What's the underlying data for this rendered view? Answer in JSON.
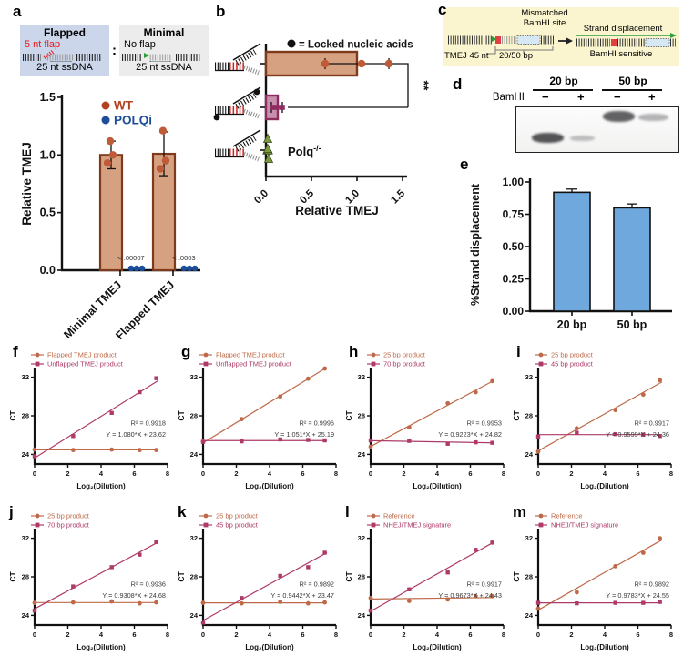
{
  "panels": {
    "a": {
      "letter": "a",
      "flapped": {
        "title": "Flapped",
        "flap": "5 nt flap",
        "ssdna": "25 nt ssDNA"
      },
      "minimal": {
        "title": "Minimal",
        "flap": "No flap",
        "ssdna": "25 nt ssDNA"
      },
      "colon": ":"
    },
    "b": {
      "letter": "b"
    },
    "c": {
      "letter": "c",
      "mismatched_1": "Mismatched",
      "mismatched_2": "BamHI site",
      "strand": "Strand displacement",
      "sensitive": "BamHI sensitive",
      "tmej": "TMEJ 45 nt",
      "bp": "20/50 bp"
    },
    "d": {
      "letter": "d",
      "group1": "20 bp",
      "group2": "50 bp",
      "enzyme": "BamHI",
      "lane1": "−",
      "lane2": "+",
      "lane3": "−",
      "lane4": "+"
    },
    "e": {
      "letter": "e"
    },
    "f": {
      "letter": "f"
    },
    "g": {
      "letter": "g"
    },
    "h": {
      "letter": "h"
    },
    "i": {
      "letter": "i"
    },
    "j": {
      "letter": "j"
    },
    "k": {
      "letter": "k"
    },
    "l": {
      "letter": "l"
    },
    "m": {
      "letter": "m"
    }
  },
  "chart_data": [
    {
      "id": "a",
      "type": "bar",
      "ylabel": "Relative TMEJ",
      "yticks": [
        "0.0",
        "0.5",
        "1.0",
        "1.5"
      ],
      "ylim": [
        0,
        1.5
      ],
      "categories": [
        "Minimal TMEJ",
        "Flapped TMEJ"
      ],
      "legend": [
        {
          "name": "WT",
          "color": "#B3401F"
        },
        {
          "name": "POLQi",
          "color": "#1C4E9A"
        }
      ],
      "bar_fill": "#D6A181",
      "bar_border": "#7E3A1B",
      "point_color": "#BF5B38",
      "bars": [
        {
          "value": 1.0,
          "err": 0.12,
          "points": [
            0.93,
            1.0,
            1.12
          ]
        },
        {
          "value": 1.01,
          "err": 0.19,
          "points": [
            0.88,
            0.95,
            1.21
          ]
        }
      ],
      "polqi": {
        "color": "#1C4E9A",
        "values": [
          0,
          0
        ],
        "annotations": [
          "< .00007",
          "< .0003"
        ]
      }
    },
    {
      "id": "b",
      "type": "hbar",
      "xlabel": "Relative TMEJ",
      "xticks": [
        "0.0",
        "0.5",
        "1.0",
        "1.5"
      ],
      "xlim": [
        0,
        1.5
      ],
      "legend": "= Locked nucleic acids",
      "sig": "**",
      "rows": [
        {
          "substrate": "flapped-dna",
          "bar": 1.0,
          "fill": "#D6A181",
          "border": "#7E3A1B",
          "marker": "circle",
          "point_color": "#BF5B38",
          "points": [
            0.65,
            1.05,
            1.35
          ],
          "err": [
            0.65,
            1.35
          ]
        },
        {
          "substrate": "flapped-dna-lna",
          "bar": 0.13,
          "fill": "#C791AE",
          "border": "#8E2B5F",
          "marker": "square",
          "point_color": "#8E2B5F",
          "points": [
            0.07,
            0.12,
            0.18
          ],
          "err": [
            0.06,
            0.18
          ]
        },
        {
          "substrate": "flapped-dna",
          "bar": 0,
          "marker": "triangle",
          "point_color": "#7A9A3D",
          "points": [
            0.01,
            0.02,
            0.03
          ],
          "label": "Polq",
          "label_sup": "-/-"
        }
      ]
    },
    {
      "id": "e",
      "type": "bar",
      "ylabel": "%Strand displacement",
      "yticks": [
        "0.00",
        "0.25",
        "0.50",
        "0.75",
        "1.00"
      ],
      "ylim": [
        0,
        1
      ],
      "categories": [
        "20 bp",
        "50 bp"
      ],
      "bar_fill": "#6FA8DC",
      "bar_border": "#111",
      "bars": [
        {
          "value": 0.92,
          "err": 0.025
        },
        {
          "value": 0.8,
          "err": 0.03
        }
      ]
    },
    {
      "id": "f",
      "type": "line",
      "xlabel": "Log₂(Dilution)",
      "ylabel": "CT",
      "xticks": [
        0,
        2,
        4,
        6,
        8
      ],
      "yticks": [
        24,
        28,
        32
      ],
      "xlim": [
        0,
        8
      ],
      "ylim": [
        23,
        33
      ],
      "x": [
        0,
        2.32,
        4.64,
        6.32,
        7.32
      ],
      "r2": "R² = 0.9918",
      "eq": "Y = 1.080*X + 23.62",
      "series": [
        {
          "name": "Flapped TMEJ product",
          "marker": "circle",
          "color": "#BE6A4A",
          "y": [
            24.5,
            24.45,
            24.5,
            24.45,
            24.45
          ],
          "fit": {
            "slope": 0,
            "intercept": 24.47
          }
        },
        {
          "name": "Unflapped TMEJ product",
          "marker": "square",
          "color": "#AD3A68",
          "y": [
            23.8,
            25.9,
            28.3,
            30.45,
            31.9
          ],
          "fit": {
            "slope": 1.08,
            "intercept": 23.62
          }
        }
      ]
    },
    {
      "id": "g",
      "type": "line",
      "xlabel": "Log₂(Dilution)",
      "ylabel": "CT",
      "xticks": [
        0,
        2,
        4,
        6,
        8
      ],
      "yticks": [
        24,
        28,
        32
      ],
      "xlim": [
        0,
        8
      ],
      "ylim": [
        23,
        33
      ],
      "x": [
        0,
        2.32,
        4.64,
        6.32,
        7.32
      ],
      "r2": "R² = 0.9996",
      "eq": "Y = 1.051*X + 25.19",
      "series": [
        {
          "name": "Flapped TMEJ product",
          "marker": "circle",
          "color": "#BE6A4A",
          "y": [
            25.35,
            27.65,
            30.0,
            31.85,
            32.9
          ],
          "fit": {
            "slope": 1.051,
            "intercept": 25.19
          }
        },
        {
          "name": "Unflapped TMEJ product",
          "marker": "square",
          "color": "#AD3A68",
          "y": [
            25.3,
            25.35,
            25.55,
            25.5,
            25.45
          ],
          "fit": {
            "slope": 0,
            "intercept": 25.43
          }
        }
      ]
    },
    {
      "id": "h",
      "type": "line",
      "xlabel": "Log₂(Dilution)",
      "ylabel": "CT",
      "xticks": [
        0,
        2,
        4,
        6,
        8
      ],
      "yticks": [
        24,
        28,
        32
      ],
      "xlim": [
        0,
        8
      ],
      "ylim": [
        23,
        33
      ],
      "x": [
        0,
        2.32,
        4.64,
        6.32,
        7.32
      ],
      "r2": "R² = 0.9953",
      "eq": "Y = 0.9223*X + 24.82",
      "series": [
        {
          "name": "25 bp product",
          "marker": "circle",
          "color": "#BE6A4A",
          "y": [
            24.8,
            26.8,
            29.3,
            30.45,
            31.6
          ],
          "fit": {
            "slope": 0.9223,
            "intercept": 24.82
          }
        },
        {
          "name": "70 bp product",
          "marker": "square",
          "color": "#AD3A68",
          "y": [
            25.45,
            25.4,
            25.1,
            25.25,
            25.2
          ],
          "fit": {
            "slope": -0.03,
            "intercept": 25.42
          }
        }
      ]
    },
    {
      "id": "i",
      "type": "line",
      "xlabel": "Log₂(Dilution)",
      "ylabel": "CT",
      "xticks": [
        0,
        2,
        4,
        6,
        8
      ],
      "yticks": [
        24,
        28,
        32
      ],
      "xlim": [
        0,
        8
      ],
      "ylim": [
        23,
        33
      ],
      "x": [
        0,
        2.32,
        4.64,
        6.32,
        7.32
      ],
      "r2": "R² = 0.9917",
      "eq": "Y = 0.9599*X + 24.36",
      "series": [
        {
          "name": "25 bp product",
          "marker": "circle",
          "color": "#BE6A4A",
          "y": [
            24.3,
            26.7,
            28.6,
            30.2,
            31.7
          ],
          "fit": {
            "slope": 0.9599,
            "intercept": 24.36
          }
        },
        {
          "name": "45 bp product",
          "marker": "square",
          "color": "#AD3A68",
          "y": [
            25.85,
            26.25,
            26.1,
            26.05,
            25.9
          ],
          "fit": {
            "slope": 0,
            "intercept": 26.05
          }
        }
      ]
    },
    {
      "id": "j",
      "type": "line",
      "xlabel": "Log₂(Dilution)",
      "ylabel": "CT",
      "xticks": [
        0,
        2,
        4,
        6,
        8
      ],
      "yticks": [
        24,
        28,
        32
      ],
      "xlim": [
        0,
        8
      ],
      "ylim": [
        23,
        33
      ],
      "x": [
        0,
        2.32,
        4.64,
        6.32,
        7.32
      ],
      "r2": "R² = 0.9936",
      "eq": "Y = 0.9308*X + 24.68",
      "series": [
        {
          "name": "25 bp product",
          "marker": "circle",
          "color": "#BE6A4A",
          "y": [
            25.3,
            25.35,
            25.45,
            25.25,
            25.35
          ],
          "fit": {
            "slope": 0,
            "intercept": 25.33
          }
        },
        {
          "name": "70 bp product",
          "marker": "square",
          "color": "#AD3A68",
          "y": [
            24.5,
            27.0,
            29.0,
            30.3,
            31.6
          ],
          "fit": {
            "slope": 0.9308,
            "intercept": 24.68
          }
        }
      ]
    },
    {
      "id": "k",
      "type": "line",
      "xlabel": "Log₂(Dilution)",
      "ylabel": "CT",
      "xticks": [
        0,
        2,
        4,
        6,
        8
      ],
      "yticks": [
        24,
        28,
        32
      ],
      "xlim": [
        0,
        8
      ],
      "ylim": [
        23,
        33
      ],
      "x": [
        0,
        2.32,
        4.64,
        6.32,
        7.32
      ],
      "r2": "R² = 0.9892",
      "eq": "Y = 0.9442*X + 23.47",
      "series": [
        {
          "name": "25 bp product",
          "marker": "circle",
          "color": "#BE6A4A",
          "y": [
            25.3,
            25.25,
            25.4,
            25.25,
            25.35
          ],
          "fit": {
            "slope": 0,
            "intercept": 25.3
          }
        },
        {
          "name": "45 bp product",
          "marker": "square",
          "color": "#AD3A68",
          "y": [
            23.25,
            25.8,
            28.1,
            29.0,
            30.5
          ],
          "fit": {
            "slope": 0.9442,
            "intercept": 23.47
          }
        }
      ]
    },
    {
      "id": "l",
      "type": "line",
      "xlabel": "Log₂(Dilution)",
      "ylabel": "CT",
      "xticks": [
        0,
        2,
        4,
        6,
        8
      ],
      "yticks": [
        24,
        28,
        32
      ],
      "xlim": [
        0,
        8
      ],
      "ylim": [
        23,
        33
      ],
      "x": [
        0,
        2.32,
        4.64,
        6.32,
        7.32
      ],
      "r2": "R² = 0.9917",
      "eq": "Y = 0.9673*X + 24.43",
      "series": [
        {
          "name": "Reference",
          "marker": "circle",
          "color": "#BE6A4A",
          "y": [
            25.8,
            25.5,
            25.65,
            26.0,
            26.0
          ],
          "fit": {
            "slope": 0.02,
            "intercept": 25.7
          }
        },
        {
          "name": "NHEJ/TMEJ signature",
          "marker": "square",
          "color": "#AD3A68",
          "y": [
            24.5,
            26.7,
            28.45,
            30.8,
            31.55
          ],
          "fit": {
            "slope": 0.9673,
            "intercept": 24.43
          }
        }
      ]
    },
    {
      "id": "m",
      "type": "line",
      "xlabel": "Log₂(Dilution)",
      "ylabel": "CT",
      "xticks": [
        0,
        2,
        4,
        6,
        8
      ],
      "yticks": [
        24,
        28,
        32
      ],
      "xlim": [
        0,
        8
      ],
      "ylim": [
        23,
        33
      ],
      "x": [
        0,
        2.32,
        4.64,
        6.32,
        7.32
      ],
      "r2": "R² = 0.9892",
      "eq": "Y = 0.9783*X + 24.55",
      "series": [
        {
          "name": "Reference",
          "marker": "circle",
          "color": "#BE6A4A",
          "y": [
            24.7,
            26.4,
            29.1,
            30.5,
            32.0
          ],
          "fit": {
            "slope": 0.9783,
            "intercept": 24.55
          }
        },
        {
          "name": "NHEJ/TMEJ signature",
          "marker": "square",
          "color": "#AD3A68",
          "y": [
            25.3,
            25.25,
            25.3,
            25.3,
            25.4
          ],
          "fit": {
            "slope": 0,
            "intercept": 25.3
          }
        }
      ]
    }
  ]
}
